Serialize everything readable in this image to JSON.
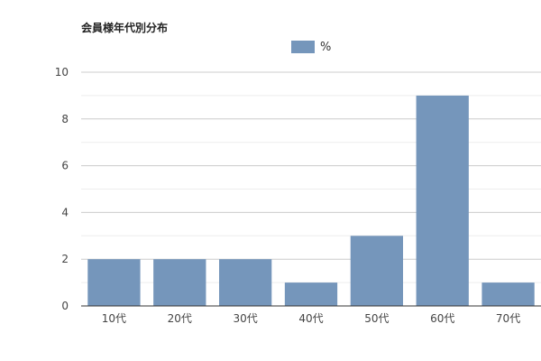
{
  "chart_data": {
    "type": "bar",
    "title": "会員様年代別分布",
    "categories": [
      "10代",
      "20代",
      "30代",
      "40代",
      "50代",
      "60代",
      "70代"
    ],
    "series": [
      {
        "name": "%",
        "values": [
          2,
          2,
          2,
          1,
          3,
          9,
          1
        ]
      }
    ],
    "ylim": [
      0,
      10
    ],
    "yticks": [
      0,
      2,
      4,
      6,
      8,
      10
    ],
    "grid": true,
    "legend_position": "top-center",
    "colors": {
      "bar": "#7596bb",
      "grid_major": "#cccccc",
      "grid_minor": "#eeeeee",
      "axis": "#333333"
    }
  }
}
